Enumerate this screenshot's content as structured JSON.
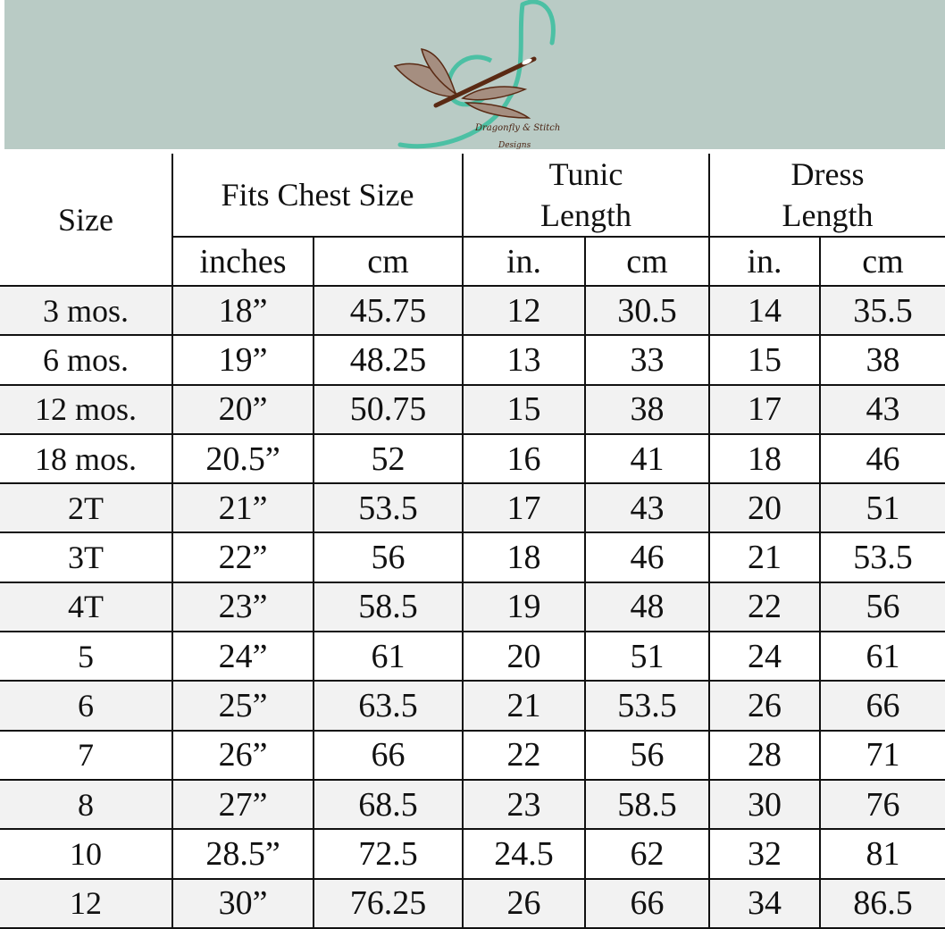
{
  "brand": {
    "logo_text_line1": "Dragonfly & Stitch",
    "logo_text_line2": "Designs",
    "banner_color": "#b9cbc5",
    "thread_color": "#4cc0a4",
    "wing_color": "#a58e80",
    "body_color": "#5a2a14"
  },
  "header": {
    "size": "Size",
    "chest": "Fits Chest Size",
    "tunic": "Tunic Length",
    "dress": "Dress Length",
    "sub": [
      "inches",
      "cm",
      "in.",
      "cm",
      "in.",
      "cm"
    ]
  },
  "rows": [
    [
      "3 mos.",
      "18”",
      "45.75",
      "12",
      "30.5",
      "14",
      "35.5"
    ],
    [
      "6 mos.",
      "19”",
      "48.25",
      "13",
      "33",
      "15",
      "38"
    ],
    [
      "12 mos.",
      "20”",
      "50.75",
      "15",
      "38",
      "17",
      "43"
    ],
    [
      "18 mos.",
      "20.5”",
      "52",
      "16",
      "41",
      "18",
      "46"
    ],
    [
      "2T",
      "21”",
      "53.5",
      "17",
      "43",
      "20",
      "51"
    ],
    [
      "3T",
      "22”",
      "56",
      "18",
      "46",
      "21",
      "53.5"
    ],
    [
      "4T",
      "23”",
      "58.5",
      "19",
      "48",
      "22",
      "56"
    ],
    [
      "5",
      "24”",
      "61",
      "20",
      "51",
      "24",
      "61"
    ],
    [
      "6",
      "25”",
      "63.5",
      "21",
      "53.5",
      "26",
      "66"
    ],
    [
      "7",
      "26”",
      "66",
      "22",
      "56",
      "28",
      "71"
    ],
    [
      "8",
      "27”",
      "68.5",
      "23",
      "58.5",
      "30",
      "76"
    ],
    [
      "10",
      "28.5”",
      "72.5",
      "24.5",
      "62",
      "32",
      "81"
    ],
    [
      "12",
      "30”",
      "76.25",
      "26",
      "66",
      "34",
      "86.5"
    ]
  ]
}
